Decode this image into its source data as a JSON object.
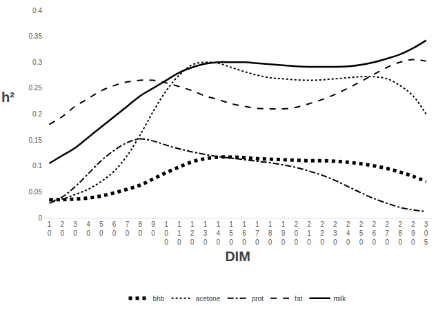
{
  "chart_data": {
    "type": "line",
    "x_label": "DIM",
    "y_label": "h²",
    "categories": [
      "10",
      "20",
      "30",
      "40",
      "50",
      "60",
      "70",
      "80",
      "90",
      "100",
      "110",
      "120",
      "130",
      "140",
      "150",
      "160",
      "170",
      "180",
      "190",
      "200",
      "210",
      "220",
      "230",
      "240",
      "250",
      "260",
      "270",
      "280",
      "290",
      "305"
    ],
    "ylim": [
      0,
      0.4
    ],
    "yticks": [
      0,
      0.05,
      0.1,
      0.15,
      0.2,
      0.25,
      0.3,
      0.35,
      0.4
    ],
    "grid": false,
    "legend": "bottom",
    "series": [
      {
        "name": "bhb",
        "color": "#000000",
        "line_style": "dotted-heavy",
        "values": [
          0.035,
          0.035,
          0.036,
          0.038,
          0.042,
          0.048,
          0.055,
          0.063,
          0.075,
          0.087,
          0.098,
          0.108,
          0.114,
          0.117,
          0.117,
          0.116,
          0.114,
          0.113,
          0.112,
          0.111,
          0.11,
          0.11,
          0.109,
          0.107,
          0.104,
          0.1,
          0.095,
          0.088,
          0.08,
          0.07
        ]
      },
      {
        "name": "acetone",
        "color": "#000000",
        "line_style": "dotted",
        "values": [
          0.033,
          0.036,
          0.045,
          0.055,
          0.07,
          0.09,
          0.12,
          0.16,
          0.205,
          0.245,
          0.275,
          0.295,
          0.3,
          0.298,
          0.29,
          0.282,
          0.275,
          0.27,
          0.268,
          0.266,
          0.265,
          0.266,
          0.268,
          0.27,
          0.272,
          0.272,
          0.268,
          0.255,
          0.235,
          0.2
        ]
      },
      {
        "name": "prot",
        "color": "#000000",
        "line_style": "dashdot",
        "values": [
          0.028,
          0.04,
          0.06,
          0.085,
          0.11,
          0.13,
          0.145,
          0.152,
          0.148,
          0.14,
          0.133,
          0.127,
          0.122,
          0.118,
          0.115,
          0.112,
          0.109,
          0.106,
          0.102,
          0.097,
          0.09,
          0.082,
          0.072,
          0.06,
          0.048,
          0.037,
          0.028,
          0.02,
          0.015,
          0.012
        ]
      },
      {
        "name": "fat",
        "color": "#000000",
        "line_style": "dashed",
        "values": [
          0.18,
          0.195,
          0.215,
          0.23,
          0.245,
          0.255,
          0.262,
          0.265,
          0.265,
          0.26,
          0.253,
          0.245,
          0.235,
          0.228,
          0.22,
          0.215,
          0.211,
          0.21,
          0.21,
          0.213,
          0.22,
          0.228,
          0.238,
          0.25,
          0.263,
          0.277,
          0.29,
          0.3,
          0.305,
          0.302
        ]
      },
      {
        "name": "milk",
        "color": "#000000",
        "line_style": "solid",
        "values": [
          0.105,
          0.12,
          0.135,
          0.155,
          0.175,
          0.195,
          0.215,
          0.235,
          0.25,
          0.265,
          0.28,
          0.29,
          0.297,
          0.3,
          0.3,
          0.3,
          0.298,
          0.296,
          0.294,
          0.292,
          0.291,
          0.291,
          0.291,
          0.292,
          0.295,
          0.3,
          0.307,
          0.315,
          0.327,
          0.342
        ]
      }
    ]
  }
}
